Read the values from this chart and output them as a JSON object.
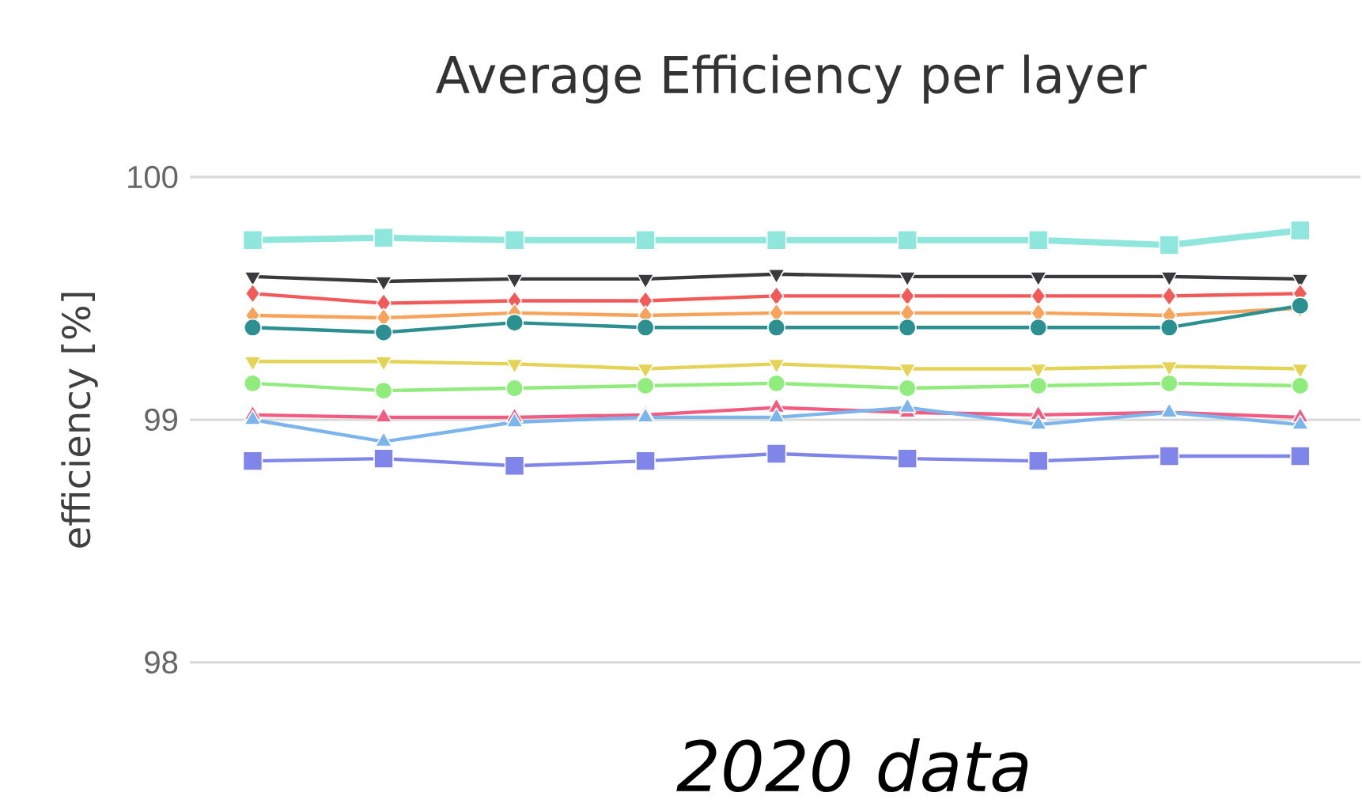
{
  "chart_data": {
    "type": "line",
    "title": "Average Efficiency per layer",
    "ylabel": "efficiency [%]",
    "categories": [
      null,
      null,
      null,
      null,
      null,
      null,
      null,
      null,
      null
    ],
    "ylim": [
      98,
      100
    ],
    "yticks": [
      98,
      99,
      100
    ],
    "grid": "y",
    "annotations": [
      "*2020 data*"
    ],
    "series": [
      {
        "color": "#8ee6dc",
        "marker": "square",
        "values": [
          99.74,
          99.75,
          99.74,
          99.74,
          99.74,
          99.74,
          99.74,
          99.72,
          99.78
        ]
      },
      {
        "color": "#3a3a3e",
        "marker": "triangle-down",
        "values": [
          99.59,
          99.57,
          99.58,
          99.58,
          99.6,
          99.59,
          99.59,
          99.59,
          99.58
        ]
      },
      {
        "color": "#f25a5a",
        "marker": "diamond",
        "values": [
          99.52,
          99.48,
          99.49,
          99.49,
          99.51,
          99.51,
          99.51,
          99.51,
          99.52
        ]
      },
      {
        "color": "#f7a35c",
        "marker": "diamond",
        "values": [
          99.43,
          99.42,
          99.44,
          99.43,
          99.44,
          99.44,
          99.44,
          99.43,
          99.46
        ]
      },
      {
        "color": "#2b908f",
        "marker": "circle",
        "values": [
          99.38,
          99.36,
          99.4,
          99.38,
          99.38,
          99.38,
          99.38,
          99.38,
          99.47
        ]
      },
      {
        "color": "#e4d354",
        "marker": "triangle-down",
        "values": [
          99.24,
          99.24,
          99.23,
          99.21,
          99.23,
          99.21,
          99.21,
          99.22,
          99.21
        ]
      },
      {
        "color": "#90ed7d",
        "marker": "circle",
        "values": [
          99.15,
          99.12,
          99.13,
          99.14,
          99.15,
          99.13,
          99.14,
          99.15,
          99.14
        ]
      },
      {
        "color": "#f15c80",
        "marker": "triangle",
        "values": [
          99.02,
          99.01,
          99.01,
          99.02,
          99.05,
          99.03,
          99.02,
          99.03,
          99.01
        ]
      },
      {
        "color": "#7cb5ec",
        "marker": "triangle",
        "values": [
          99.0,
          98.91,
          98.99,
          99.01,
          99.01,
          99.05,
          98.98,
          99.03,
          98.98
        ]
      },
      {
        "color": "#8085e9",
        "marker": "square",
        "values": [
          98.83,
          98.84,
          98.81,
          98.83,
          98.86,
          98.84,
          98.83,
          98.85,
          98.85
        ]
      }
    ]
  }
}
